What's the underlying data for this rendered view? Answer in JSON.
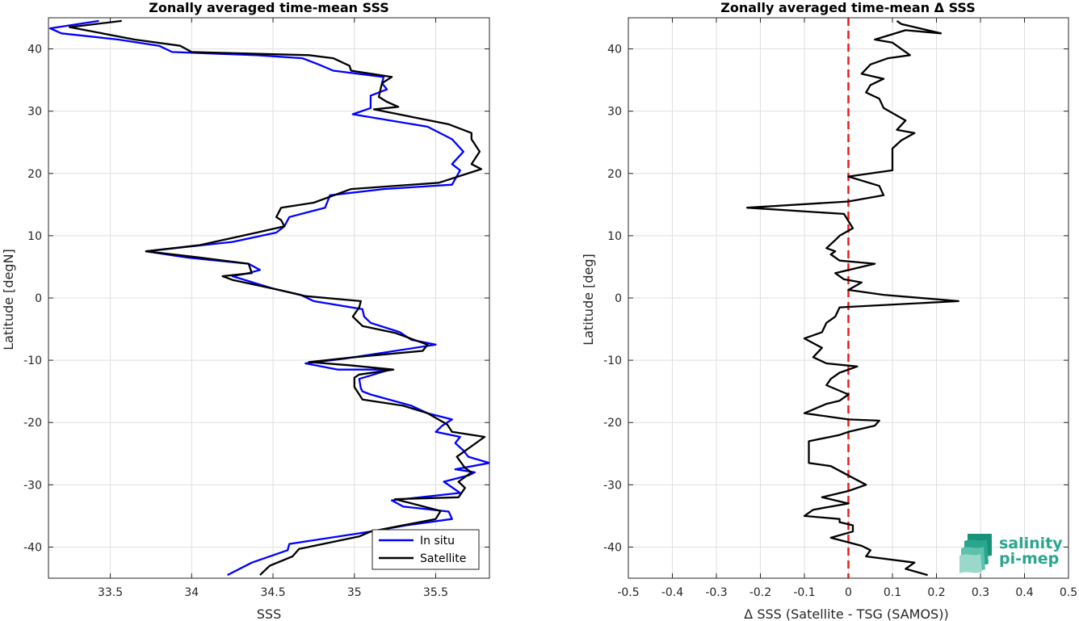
{
  "logo": {
    "line1": "salinity",
    "line2": "pi-mep"
  },
  "chart_data": [
    {
      "type": "line",
      "title": "Zonally averaged time-mean SSS",
      "xlabel": "SSS",
      "ylabel": "Latitude [degN]",
      "xlim": [
        33.12,
        35.83
      ],
      "ylim": [
        -45,
        45
      ],
      "xticks": [
        33.5,
        34,
        34.5,
        35,
        35.5
      ],
      "xtick_labels": [
        "33.5",
        "34",
        "34.5",
        "35",
        "35.5"
      ],
      "yticks": [
        -40,
        -30,
        -20,
        -10,
        0,
        10,
        20,
        30,
        40
      ],
      "ytick_labels": [
        "-40",
        "-30",
        "-20",
        "-10",
        "0",
        "10",
        "20",
        "30",
        "40"
      ],
      "grid": true,
      "legend": "bottom-right",
      "series": [
        {
          "name": "In situ",
          "color": "#0000ff",
          "points": [
            [
              34.22,
              -44.5
            ],
            [
              34.37,
              -42.5
            ],
            [
              34.59,
              -40.5
            ],
            [
              34.6,
              -39.5
            ],
            [
              35.1,
              -37.5
            ],
            [
              35.32,
              -36.5
            ],
            [
              35.6,
              -35.5
            ],
            [
              35.58,
              -34.3
            ],
            [
              35.3,
              -33.5
            ],
            [
              35.23,
              -32.5
            ],
            [
              35.65,
              -31.3
            ],
            [
              35.55,
              -29.5
            ],
            [
              35.7,
              -28.5
            ],
            [
              35.74,
              -28
            ],
            [
              35.62,
              -27.5
            ],
            [
              35.83,
              -26.5
            ],
            [
              35.7,
              -25.5
            ],
            [
              35.67,
              -24.5
            ],
            [
              35.62,
              -23.3
            ],
            [
              35.65,
              -22.3
            ],
            [
              35.5,
              -21.5
            ],
            [
              35.54,
              -20.5
            ],
            [
              35.6,
              -19.5
            ],
            [
              35.45,
              -18.5
            ],
            [
              35.35,
              -17.3
            ],
            [
              35.1,
              -15.5
            ],
            [
              35.05,
              -15
            ],
            [
              35.04,
              -14.5
            ],
            [
              35.03,
              -13
            ],
            [
              35.22,
              -11.5
            ],
            [
              34.9,
              -11.5
            ],
            [
              34.7,
              -10.5
            ],
            [
              34.95,
              -9.7
            ],
            [
              35.5,
              -7.5
            ],
            [
              35.35,
              -6.7
            ],
            [
              35.28,
              -5.5
            ],
            [
              35.1,
              -4
            ],
            [
              35.06,
              -3
            ],
            [
              35.05,
              -1.8
            ],
            [
              34.75,
              -0.5
            ],
            [
              34.67,
              0.5
            ],
            [
              34.5,
              1.5
            ],
            [
              34.25,
              3.5
            ],
            [
              34.35,
              4
            ],
            [
              34.42,
              4.5
            ],
            [
              34.35,
              5.5
            ],
            [
              33.97,
              6.5
            ],
            [
              33.72,
              7.5
            ],
            [
              34.25,
              9
            ],
            [
              34.52,
              10.5
            ],
            [
              34.57,
              11.5
            ],
            [
              34.6,
              13
            ],
            [
              34.82,
              14.5
            ],
            [
              34.85,
              16.5
            ],
            [
              35.18,
              17.5
            ],
            [
              35.6,
              18.2
            ],
            [
              35.65,
              20.5
            ],
            [
              35.6,
              21.5
            ],
            [
              35.67,
              23.5
            ],
            [
              35.6,
              25.5
            ],
            [
              35.45,
              27.5
            ],
            [
              34.99,
              29.5
            ],
            [
              35.1,
              30.5
            ],
            [
              35.1,
              32.5
            ],
            [
              35.2,
              33.5
            ],
            [
              35.17,
              34.5
            ],
            [
              35.18,
              35.5
            ],
            [
              34.87,
              36.5
            ],
            [
              34.78,
              37.5
            ],
            [
              34.68,
              38.5
            ],
            [
              34.4,
              39
            ],
            [
              33.88,
              39.5
            ],
            [
              33.8,
              40.5
            ],
            [
              33.55,
              41.5
            ],
            [
              33.2,
              42.5
            ],
            [
              33.13,
              43.3
            ],
            [
              33.43,
              44.5
            ]
          ]
        },
        {
          "name": "Satellite",
          "color": "#000000",
          "points": [
            [
              34.42,
              -44.5
            ],
            [
              34.48,
              -43
            ],
            [
              34.62,
              -41.5
            ],
            [
              34.66,
              -40.3
            ],
            [
              35.03,
              -38.3
            ],
            [
              35.1,
              -37.5
            ],
            [
              35.5,
              -35.5
            ],
            [
              35.53,
              -34.2
            ],
            [
              35.25,
              -32.3
            ],
            [
              35.64,
              -32
            ],
            [
              35.68,
              -30.5
            ],
            [
              35.64,
              -29.5
            ],
            [
              35.72,
              -28
            ],
            [
              35.68,
              -27.3
            ],
            [
              35.63,
              -25.5
            ],
            [
              35.8,
              -22.3
            ],
            [
              35.6,
              -21.5
            ],
            [
              35.57,
              -20.3
            ],
            [
              35.45,
              -18.5
            ],
            [
              35.3,
              -17.3
            ],
            [
              35.05,
              -16.3
            ],
            [
              35.03,
              -15.5
            ],
            [
              35,
              -14.3
            ],
            [
              35,
              -12.8
            ],
            [
              35.03,
              -12.3
            ],
            [
              35.24,
              -11.5
            ],
            [
              34.97,
              -10.8
            ],
            [
              34.72,
              -10.3
            ],
            [
              35.0,
              -9.5
            ],
            [
              35.42,
              -8.5
            ],
            [
              35.45,
              -7.5
            ],
            [
              35.25,
              -5.6
            ],
            [
              35.05,
              -4.5
            ],
            [
              34.99,
              -3
            ],
            [
              35.03,
              -1.5
            ],
            [
              35.04,
              -0.5
            ],
            [
              34.7,
              0.3
            ],
            [
              34.52,
              1.4
            ],
            [
              34.25,
              2.9
            ],
            [
              34.19,
              3.5
            ],
            [
              34.37,
              4
            ],
            [
              34.35,
              5.5
            ],
            [
              34.05,
              6.5
            ],
            [
              33.72,
              7.5
            ],
            [
              34.05,
              8.5
            ],
            [
              34.4,
              10.5
            ],
            [
              34.57,
              11.5
            ],
            [
              34.55,
              12.5
            ],
            [
              34.52,
              13
            ],
            [
              34.55,
              14.5
            ],
            [
              34.75,
              15.3
            ],
            [
              34.98,
              17.5
            ],
            [
              35.52,
              18.5
            ],
            [
              35.78,
              20.7
            ],
            [
              35.72,
              21.5
            ],
            [
              35.77,
              23.5
            ],
            [
              35.72,
              25.5
            ],
            [
              35.72,
              26.5
            ],
            [
              35.58,
              27.9
            ],
            [
              35.12,
              30.3
            ],
            [
              35.27,
              30.7
            ],
            [
              35.2,
              31.5
            ],
            [
              35.15,
              32.3
            ],
            [
              35.17,
              34.5
            ],
            [
              35.23,
              35.5
            ],
            [
              34.98,
              36.5
            ],
            [
              34.97,
              37.3
            ],
            [
              34.87,
              38.5
            ],
            [
              34.72,
              39
            ],
            [
              34.0,
              39.5
            ],
            [
              33.93,
              40.5
            ],
            [
              33.65,
              41.5
            ],
            [
              33.45,
              42.5
            ],
            [
              33.25,
              43.5
            ],
            [
              33.57,
              44.5
            ]
          ]
        }
      ]
    },
    {
      "type": "line",
      "title": "Zonally averaged time-mean Δ SSS",
      "xlabel": "Δ SSS (Satellite - TSG (SAMOS))",
      "ylabel": "Latitude [deg]",
      "xlim": [
        -0.5,
        0.5
      ],
      "ylim": [
        -45,
        45
      ],
      "xticks": [
        -0.5,
        -0.4,
        -0.3,
        -0.2,
        -0.1,
        0,
        0.1,
        0.2,
        0.3,
        0.4,
        0.5
      ],
      "xtick_labels": [
        "-0.5",
        "-0.4",
        "-0.3",
        "-0.2",
        "-0.1",
        "0",
        "0.1",
        "0.2",
        "0.3",
        "0.4",
        "0.5"
      ],
      "yticks": [
        -40,
        -30,
        -20,
        -10,
        0,
        10,
        20,
        30,
        40
      ],
      "ytick_labels": [
        "-40",
        "-30",
        "-20",
        "-10",
        "0",
        "10",
        "20",
        "30",
        "40"
      ],
      "grid": true,
      "reference_line": {
        "x": 0,
        "color": "#e81e1e",
        "style": "dashed"
      },
      "series": [
        {
          "color": "#000000",
          "points": [
            [
              0.18,
              -44.5
            ],
            [
              0.13,
              -43.5
            ],
            [
              0.15,
              -42.5
            ],
            [
              0.04,
              -41.5
            ],
            [
              0.05,
              -40.5
            ],
            [
              0.03,
              -39.8
            ],
            [
              -0.04,
              -38.5
            ],
            [
              0.01,
              -37.5
            ],
            [
              0.01,
              -36.5
            ],
            [
              -0.02,
              -36
            ],
            [
              -0.02,
              -35.5
            ],
            [
              -0.1,
              -35
            ],
            [
              -0.08,
              -34
            ],
            [
              0.0,
              -33
            ],
            [
              -0.06,
              -32
            ],
            [
              0.0,
              -31
            ],
            [
              0.04,
              -30
            ],
            [
              0.0,
              -28.5
            ],
            [
              -0.04,
              -27
            ],
            [
              -0.09,
              -26.5
            ],
            [
              -0.09,
              -25
            ],
            [
              -0.09,
              -23
            ],
            [
              -0.02,
              -22
            ],
            [
              0.0,
              -21.5
            ],
            [
              0.06,
              -20.5
            ],
            [
              0.07,
              -19.7
            ],
            [
              0.0,
              -19.5
            ],
            [
              -0.1,
              -18.5
            ],
            [
              -0.05,
              -17
            ],
            [
              -0.02,
              -16.5
            ],
            [
              0.0,
              -15.5
            ],
            [
              -0.05,
              -14
            ],
            [
              -0.04,
              -13
            ],
            [
              -0.02,
              -12
            ],
            [
              0.0,
              -11.5
            ],
            [
              0.02,
              -11
            ],
            [
              -0.05,
              -10.5
            ],
            [
              -0.08,
              -9.5
            ],
            [
              -0.06,
              -8
            ],
            [
              -0.1,
              -6.5
            ],
            [
              -0.06,
              -5.5
            ],
            [
              -0.05,
              -4
            ],
            [
              -0.03,
              -3
            ],
            [
              -0.02,
              -1.5
            ],
            [
              0.25,
              -0.5
            ],
            [
              0.08,
              0.5
            ],
            [
              0.0,
              1.3
            ],
            [
              0.03,
              2.5
            ],
            [
              -0.01,
              3
            ],
            [
              -0.03,
              4
            ],
            [
              0.06,
              5.5
            ],
            [
              -0.02,
              6
            ],
            [
              -0.04,
              7
            ],
            [
              -0.03,
              7.5
            ],
            [
              -0.05,
              8
            ],
            [
              -0.03,
              9.3
            ],
            [
              -0.02,
              10
            ],
            [
              0.01,
              11.2
            ],
            [
              -0.01,
              13.5
            ],
            [
              -0.23,
              14.5
            ],
            [
              0.0,
              15.5
            ],
            [
              0.08,
              16.5
            ],
            [
              0.07,
              18
            ],
            [
              0.0,
              19.5
            ],
            [
              0.1,
              20.5
            ],
            [
              0.1,
              22.5
            ],
            [
              0.1,
              24
            ],
            [
              0.12,
              25.3
            ],
            [
              0.15,
              26.5
            ],
            [
              0.11,
              27
            ],
            [
              0.13,
              28.5
            ],
            [
              0.08,
              30.5
            ],
            [
              0.07,
              32
            ],
            [
              0.04,
              33
            ],
            [
              0.05,
              34.2
            ],
            [
              0.08,
              35.2
            ],
            [
              0.03,
              36
            ],
            [
              0.05,
              37.5
            ],
            [
              0.09,
              38.5
            ],
            [
              0.14,
              39
            ],
            [
              0.12,
              40
            ],
            [
              0.1,
              41
            ],
            [
              0.06,
              41.5
            ],
            [
              0.13,
              43
            ],
            [
              0.21,
              42.5
            ],
            [
              0.12,
              44
            ],
            [
              0.11,
              44.5
            ]
          ]
        }
      ]
    }
  ]
}
